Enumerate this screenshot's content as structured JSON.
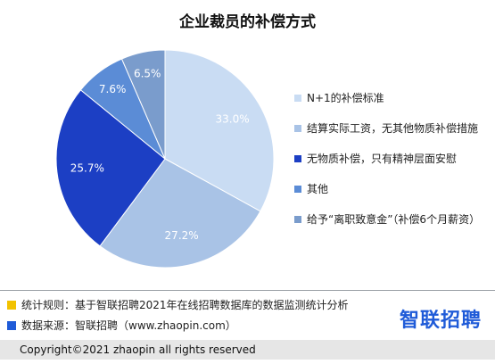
{
  "chart_data": {
    "type": "pie",
    "title": "企业裁员的补偿方式",
    "categories": [
      "N+1的补偿标准",
      "结算实际工资，无其他物质补偿措施",
      "无物质补偿，只有精神层面安慰",
      "其他",
      "给予“离职致意金”（补偿6个月薪资）"
    ],
    "values": [
      33.0,
      27.2,
      25.7,
      7.6,
      6.5
    ],
    "value_labels": [
      "33.0%",
      "27.2%",
      "25.7%",
      "7.6%",
      "6.5%"
    ],
    "colors": [
      "#c9dcf3",
      "#a9c3e6",
      "#1c3fc4",
      "#5b8cd6",
      "#7a9ccc"
    ],
    "label_colors": [
      "#ffffff",
      "#ffffff",
      "#ffffff",
      "#ffffff",
      "#ffffff"
    ],
    "legend_position": "right"
  },
  "footer": {
    "rule_label": "统计规则：基于智联招聘2021年在线招聘数据库的数据监测统计分析",
    "source_label": "数据来源：智联招聘（www.zhaopin.com）",
    "rule_mark_color": "#f2c200",
    "source_mark_color": "#1f5bd8",
    "logo_text": "智联招聘",
    "copyright": "Copyright©2021 zhaopin all rights reserved"
  }
}
